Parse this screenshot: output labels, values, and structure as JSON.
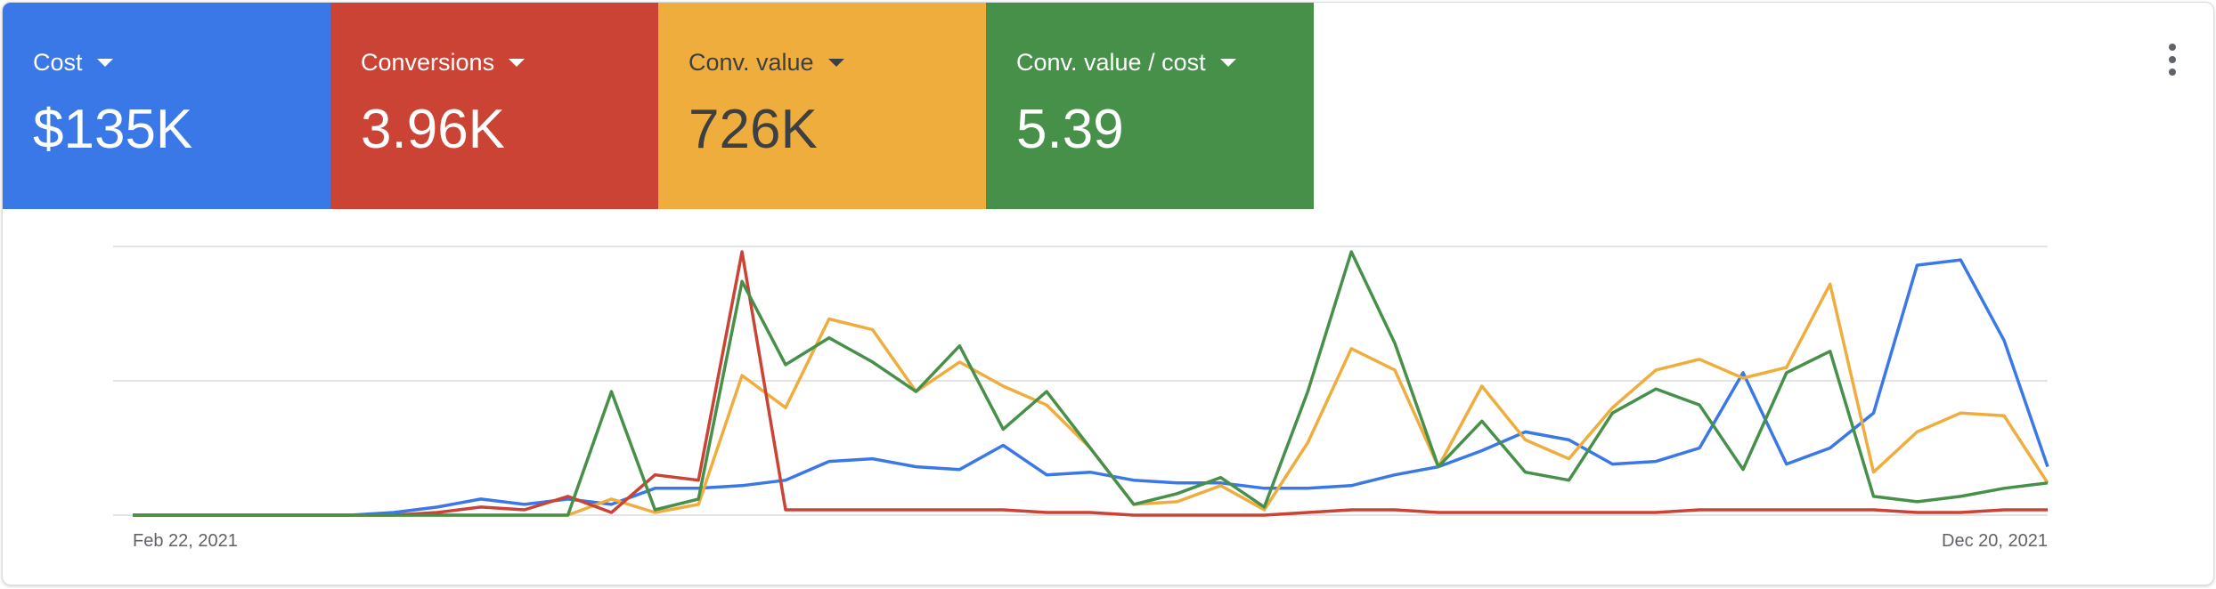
{
  "tiles": [
    {
      "label": "Cost",
      "value": "$135K",
      "color": "#3b78e7",
      "text_color": "#ffffff"
    },
    {
      "label": "Conversions",
      "value": "3.96K",
      "color": "#cb4335",
      "text_color": "#ffffff"
    },
    {
      "label": "Conv. value",
      "value": "726K",
      "color": "#efad3e",
      "text_color": "#3c4043"
    },
    {
      "label": "Conv. value / cost",
      "value": "5.39",
      "color": "#469049",
      "text_color": "#ffffff"
    }
  ],
  "more_menu_icon": "more-vert-icon",
  "chart_data": {
    "type": "line",
    "title": "",
    "xlabel": "",
    "ylabel": "",
    "x_tick_labels": [
      "Feb 22, 2021",
      "Dec 20, 2021"
    ],
    "x_range": [
      "Feb 22, 2021",
      "Dec 20, 2021"
    ],
    "y_scale": "independent per series, normalized 0–1",
    "gridlines": 3,
    "series": [
      {
        "name": "Cost",
        "color": "#3b78e7",
        "values": [
          0,
          0,
          0,
          0,
          0,
          0,
          0.01,
          0.03,
          0.06,
          0.04,
          0.06,
          0.04,
          0.1,
          0.1,
          0.11,
          0.13,
          0.2,
          0.21,
          0.18,
          0.17,
          0.26,
          0.15,
          0.16,
          0.13,
          0.12,
          0.12,
          0.1,
          0.1,
          0.11,
          0.15,
          0.18,
          0.24,
          0.31,
          0.28,
          0.19,
          0.2,
          0.25,
          0.53,
          0.19,
          0.25,
          0.38,
          0.93,
          0.95,
          0.65,
          0.18
        ]
      },
      {
        "name": "Conversions",
        "color": "#cb4335",
        "values": [
          0,
          0,
          0,
          0,
          0,
          0,
          0,
          0.01,
          0.03,
          0.02,
          0.07,
          0.01,
          0.15,
          0.13,
          0.98,
          0.02,
          0.02,
          0.02,
          0.02,
          0.02,
          0.02,
          0.01,
          0.01,
          0,
          0,
          0,
          0,
          0.01,
          0.02,
          0.02,
          0.01,
          0.01,
          0.01,
          0.01,
          0.01,
          0.01,
          0.02,
          0.02,
          0.02,
          0.02,
          0.02,
          0.01,
          0.01,
          0.02,
          0.02
        ]
      },
      {
        "name": "Conv. value",
        "color": "#efad3e",
        "values": [
          0,
          0,
          0,
          0,
          0,
          0,
          0,
          0,
          0,
          0,
          0,
          0.06,
          0.01,
          0.04,
          0.52,
          0.4,
          0.73,
          0.69,
          0.46,
          0.57,
          0.48,
          0.41,
          0.25,
          0.04,
          0.05,
          0.11,
          0.02,
          0.27,
          0.62,
          0.54,
          0.18,
          0.48,
          0.28,
          0.21,
          0.4,
          0.54,
          0.58,
          0.51,
          0.55,
          0.86,
          0.16,
          0.31,
          0.38,
          0.37,
          0.12
        ]
      },
      {
        "name": "Conv. value / cost",
        "color": "#469049",
        "values": [
          0,
          0,
          0,
          0,
          0,
          0,
          0,
          0,
          0,
          0,
          0,
          0.46,
          0.02,
          0.06,
          0.87,
          0.56,
          0.66,
          0.57,
          0.46,
          0.63,
          0.32,
          0.46,
          0.25,
          0.04,
          0.08,
          0.14,
          0.03,
          0.46,
          0.98,
          0.64,
          0.18,
          0.35,
          0.16,
          0.13,
          0.38,
          0.47,
          0.41,
          0.17,
          0.53,
          0.61,
          0.07,
          0.05,
          0.07,
          0.1,
          0.12
        ]
      }
    ]
  }
}
